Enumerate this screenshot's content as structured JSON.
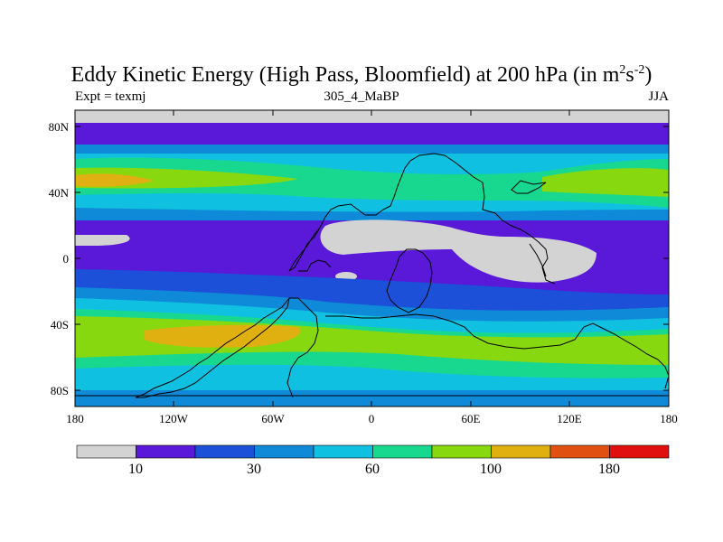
{
  "title": {
    "main": "Eddy Kinetic Energy (High Pass, Bloomfield) at 200 hPa (in m",
    "sup1": "2",
    "mid": "s",
    "sup2": "-2",
    "end": ")"
  },
  "experiment": "Expt = texmj",
  "run_name": "305_4_MaBP",
  "season": "JJA",
  "axes": {
    "lat_ticks": [
      "80N",
      "40N",
      "0",
      "40S",
      "80S"
    ],
    "lon_ticks": [
      "180",
      "120W",
      "60W",
      "0",
      "60E",
      "120E",
      "180"
    ]
  },
  "colorbar": {
    "labels": [
      "10",
      "30",
      "60",
      "100",
      "180"
    ],
    "colors": [
      "#d3d3d3",
      "#5a18d8",
      "#1c50d8",
      "#0f8ad8",
      "#10c0e0",
      "#18d890",
      "#88d810",
      "#e0b010",
      "#e05010",
      "#e01010"
    ]
  },
  "chart_data": {
    "type": "heatmap",
    "title": "Eddy Kinetic Energy (High Pass, Bloomfield) at 200 hPa (in m^2 s^-2)",
    "variable": "Eddy Kinetic Energy",
    "units": "m^2 s^-2",
    "level": "200 hPa",
    "season": "JJA",
    "lat_range": [
      -90,
      90
    ],
    "lon_range": [
      -180,
      180
    ],
    "contour_levels": [
      10,
      20,
      30,
      40,
      60,
      80,
      100,
      140,
      180
    ],
    "legend_labels": [
      10,
      30,
      60,
      100,
      180
    ],
    "lat_ticks": [
      "80N",
      "40N",
      "0",
      "40S",
      "80S"
    ],
    "lon_ticks": [
      "180",
      "120W",
      "60W",
      "0",
      "60E",
      "120E",
      "180"
    ]
  }
}
